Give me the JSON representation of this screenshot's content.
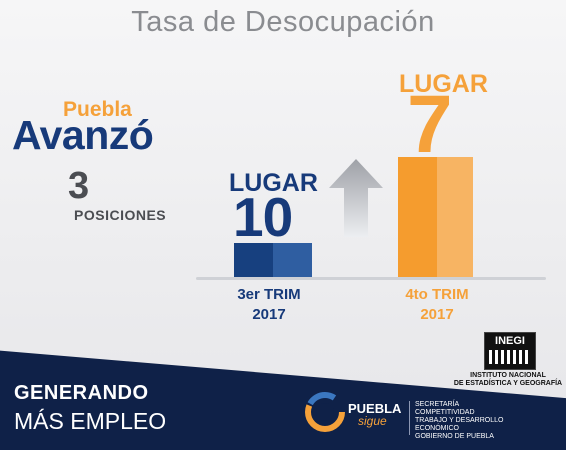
{
  "title": "Tasa de Desocupación",
  "headline": {
    "state": "Puebla",
    "verb": "Avanzó",
    "count": "3",
    "unit": "POSICIONES"
  },
  "before": {
    "label": "LUGAR",
    "rank": "10",
    "period_line1": "3er TRIM",
    "period_line2": "2017",
    "color": "#173a7a"
  },
  "after": {
    "label": "LUGAR",
    "rank": "7",
    "period_line1": "4to TRIM",
    "period_line2": "2017",
    "color": "#f5a13a"
  },
  "footer": {
    "line1": "GENERANDO",
    "line2": "MÁS EMPLEO",
    "brand_main": "PUEBLA",
    "brand_sub": "sigue",
    "secretaria": [
      "SECRETARÍA",
      "COMPETITIVIDAD",
      "TRABAJO Y DESARROLLO",
      "ECONÓMICO",
      "GOBIERNO DE PUEBLA"
    ],
    "inegi_short": "INEGI",
    "inegi_name_line1": "INSTITUTO NACIONAL",
    "inegi_name_line2": "DE ESTADÍSTICA Y GEOGRAFÍA"
  },
  "colors": {
    "navy": "#0f2148",
    "blue": "#173a7a",
    "orange": "#f5a13a",
    "gray_text": "#8a8c90"
  }
}
